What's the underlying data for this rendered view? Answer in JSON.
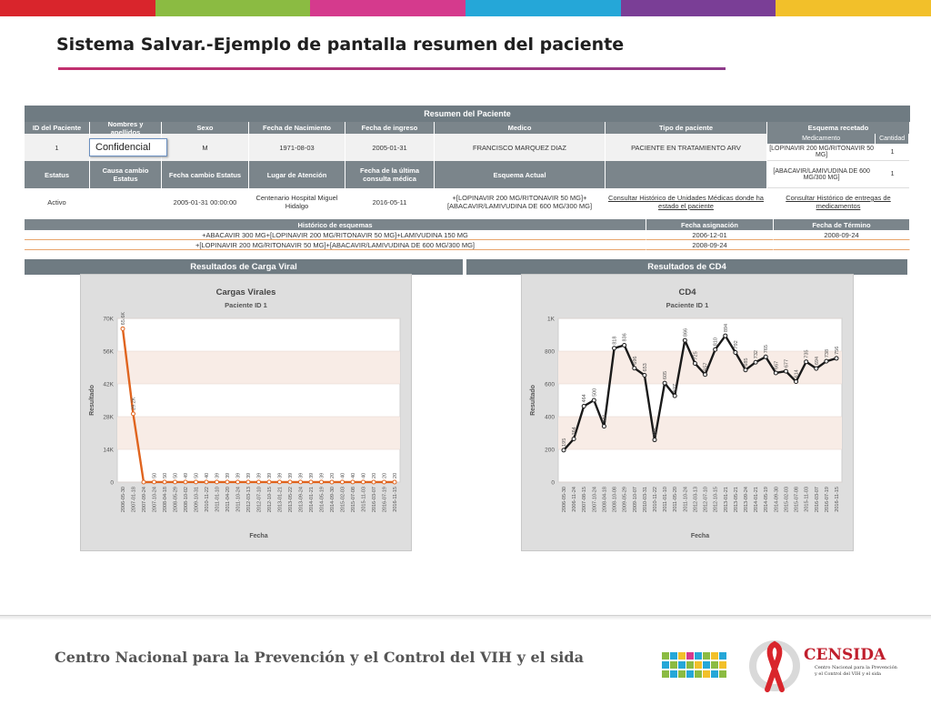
{
  "slide": {
    "title": "Sistema Salvar.-Ejemplo de pantalla resumen del paciente",
    "colors": [
      "#d9252c",
      "#8bbb42",
      "#d53a8d",
      "#25a7d8",
      "#7a3e96",
      "#f2c02a"
    ]
  },
  "summary": {
    "title": "Resumen del Paciente",
    "headers1": [
      "ID del Paciente",
      "Nombres y apellidos",
      "Sexo",
      "Fecha de Nacimiento",
      "Fecha de ingreso",
      "Medico",
      "Tipo de paciente",
      "Esquema recetado"
    ],
    "values1": {
      "id": "1",
      "sexo": "M",
      "nacimiento": "1971-08-03",
      "ingreso": "2005-01-31",
      "medico": "FRANCISCO MARQUEZ DIAZ",
      "tipo": "PACIENTE EN TRATAMIENTO ARV"
    },
    "confidencial": "Confidencial",
    "med_headers": [
      "Medicamento",
      "Cantidad"
    ],
    "meds": [
      {
        "name": "[LOPINAVIR 200 MG/RITONAVIR 50 MG]",
        "qty": "1"
      },
      {
        "name": "[ABACAVIR/LAMIVUDINA DE 600 MG/300 MG]",
        "qty": "1"
      }
    ],
    "headers2": [
      "Estatus",
      "Causa cambio Estatus",
      "Fecha cambio Estatus",
      "Lugar de Atención",
      "Fecha de la última consulta médica",
      "Esquema Actual"
    ],
    "values2": {
      "estatus": "Activo",
      "causa": "",
      "fecha_cambio": "2005-01-31 00:00:00",
      "lugar": "Centenario Hospital Miguel Hidalgo",
      "ultima": "2016-05-11",
      "esquema": "+[LOPINAVIR 200 MG/RITONAVIR 50 MG]+[ABACAVIR/LAMIVUDINA DE 600 MG/300 MG]",
      "link1": "Consultar Histórico de Unidades Médicas donde ha estado el paciente",
      "link2": "Consultar Histórico de entregas de medicamentos"
    }
  },
  "history": {
    "headers": [
      "Histórico de esquemas",
      "Fecha asignación",
      "Fecha de Término"
    ],
    "rows": [
      {
        "esquema": "+ABACAVIR 300 MG+[LOPINAVIR 200 MG/RITONAVIR 50 MG]+LAMIVUDINA 150 MG",
        "asignacion": "2006-12-01",
        "termino": "2008-09-24"
      },
      {
        "esquema": "+[LOPINAVIR 200 MG/RITONAVIR 50 MG]+[ABACAVIR/LAMIVUDINA DE 600 MG/300 MG]",
        "asignacion": "2008-09-24",
        "termino": ""
      }
    ]
  },
  "sections": {
    "carga": "Resultados de Carga Viral",
    "cd4": "Resultados de CD4"
  },
  "chart_data": [
    {
      "type": "line",
      "title": "Cargas Virales",
      "subtitle": "Paciente ID 1",
      "xlabel": "Fecha",
      "ylabel": "Resultado",
      "ylim": [
        0,
        70000
      ],
      "yticks": [
        "0",
        "14K",
        "28K",
        "42K",
        "56K",
        "70K"
      ],
      "color": "#e0641e",
      "x": [
        "2006-05-30",
        "2007-01-18",
        "2007-09-24",
        "2007-10-24",
        "2008-04-18",
        "2008-05-29",
        "2008-10-02",
        "2009-10-31",
        "2010-11-22",
        "2011-01-10",
        "2011-04-20",
        "2011-10-24",
        "2012-03-13",
        "2012-07-10",
        "2012-10-15",
        "2013-01-21",
        "2013-05-22",
        "2013-09-24",
        "2014-01-21",
        "2014-05-19",
        "2014-09-30",
        "2015-02-03",
        "2015-07-08",
        "2015-11-03",
        "2016-03-07",
        "2016-07-19",
        "2016-11-15"
      ],
      "values": [
        65600,
        29200,
        0,
        50,
        50,
        50,
        49,
        50,
        40,
        39,
        39,
        39,
        39,
        39,
        39,
        39,
        39,
        39,
        39,
        39,
        20,
        40,
        40,
        40,
        20,
        20,
        20
      ],
      "labels": [
        "65.6K",
        "29.2K",
        "",
        "50",
        "50",
        "50",
        "49",
        "50",
        "40",
        "39",
        "39",
        "39",
        "39",
        "39",
        "39",
        "39",
        "39",
        "39",
        "39",
        "39",
        "20",
        "40",
        "40",
        "40",
        "20",
        "20",
        "20"
      ]
    },
    {
      "type": "line",
      "title": "CD4",
      "subtitle": "Paciente ID 1",
      "xlabel": "Fecha",
      "ylabel": "Resultado",
      "ylim": [
        0,
        1000
      ],
      "yticks": [
        "0",
        "200",
        "400",
        "600",
        "800",
        "1K"
      ],
      "color": "#1a1a1a",
      "x": [
        "2006-05-30",
        "2006-11-24",
        "2007-08-15",
        "2007-10-24",
        "2008-04-18",
        "2008-10-08",
        "2009-05-29",
        "2009-10-07",
        "2010-03-31",
        "2010-11-22",
        "2011-01-10",
        "2011-05-20",
        "2011-10-24",
        "2012-03-13",
        "2012-07-10",
        "2012-10-15",
        "2013-01-21",
        "2013-05-21",
        "2013-09-24",
        "2014-01-21",
        "2014-05-19",
        "2014-09-30",
        "2015-02-03",
        "2015-07-08",
        "2015-11-03",
        "2016-03-07",
        "2016-07-19",
        "2016-11-15"
      ],
      "values": [
        195,
        264,
        464,
        500,
        341,
        818,
        836,
        696,
        653,
        258,
        605,
        527,
        866,
        725,
        657,
        810,
        894,
        792,
        685,
        732,
        765,
        667,
        677,
        614,
        735,
        694,
        738,
        756
      ],
      "labels": [
        "195",
        "264",
        "464",
        "500",
        "341",
        "818",
        "836",
        "696",
        "653",
        "258",
        "605",
        "527",
        "866",
        "725",
        "657",
        "810",
        "894",
        "792",
        "685",
        "732",
        "765",
        "667",
        "677",
        "614",
        "735",
        "694",
        "738",
        "756"
      ]
    }
  ],
  "footer": {
    "text": "Centro Nacional para la Prevención y el Control del VIH y el sida",
    "logo_name": "CENSIDA",
    "logo_sub1": "Centro Nacional para la Prevención",
    "logo_sub2": "y el Control del VIH y el sida"
  }
}
